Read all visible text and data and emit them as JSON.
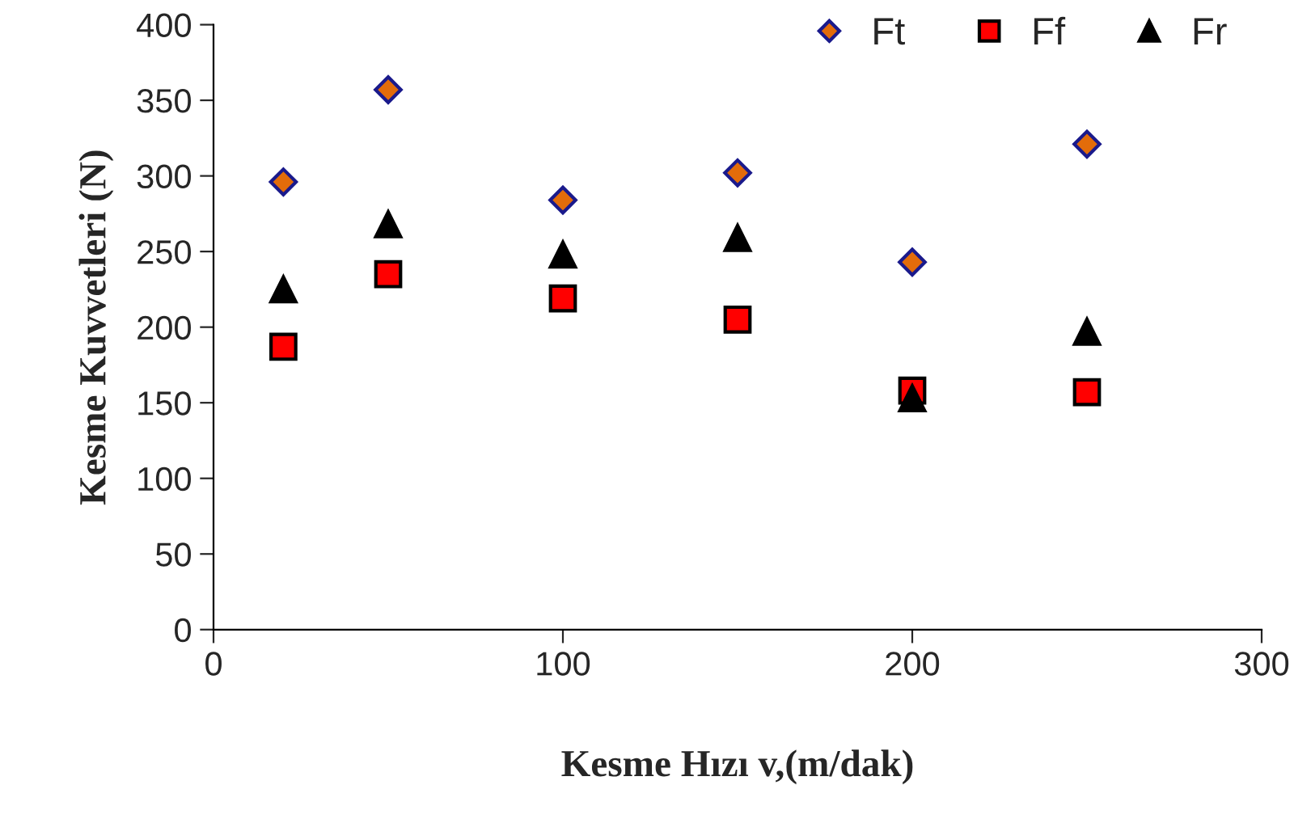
{
  "chart_data": {
    "type": "scatter",
    "xlabel": "Kesme Hızı v,(m/dak)",
    "ylabel": "Kesme Kuvvetleri (N)",
    "x": [
      20,
      50,
      100,
      150,
      200,
      250
    ],
    "series": [
      {
        "name": "Ft",
        "color": "#e36c0a",
        "marker": "diamond",
        "values": [
          296,
          357,
          284,
          302,
          243,
          321
        ]
      },
      {
        "name": "Ff",
        "color": "#ff0000",
        "marker": "square",
        "values": [
          187,
          235,
          219,
          205,
          158,
          157
        ]
      },
      {
        "name": "Fr",
        "color": "#000000",
        "marker": "triangle",
        "values": [
          225,
          268,
          248,
          259,
          153,
          197
        ]
      }
    ],
    "xlim": [
      0,
      300
    ],
    "xticks": [
      0,
      100,
      200,
      300
    ],
    "ylim": [
      0,
      400
    ],
    "yticks": [
      0,
      50,
      100,
      150,
      200,
      250,
      300,
      350,
      400
    ],
    "grid": false,
    "legend": "top right"
  }
}
